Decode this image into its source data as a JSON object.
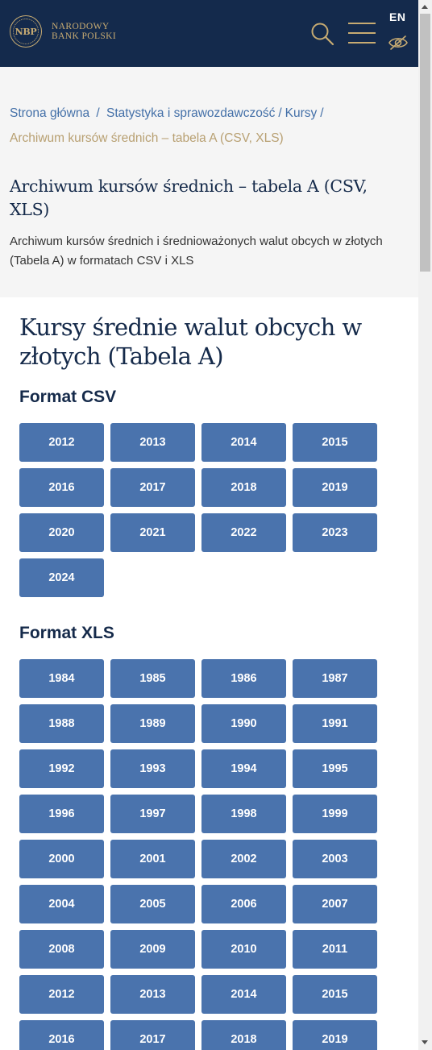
{
  "header": {
    "logo_mark": "NBP",
    "logo_line1": "NARODOWY",
    "logo_line2": "BANK POLSKI",
    "lang": "EN",
    "colors": {
      "background": "#142a4c",
      "accent": "#c7ab72"
    }
  },
  "breadcrumbs": [
    {
      "label": "Strona główna"
    },
    {
      "label": "Statystyka i sprawozdawczość"
    },
    {
      "label": "Kursy"
    },
    {
      "label": "Archiwum kursów średnich – tabela A (CSV, XLS)"
    }
  ],
  "intro": {
    "title": "Archiwum kursów średnich – tabela A (CSV, XLS)",
    "description": "Archiwum kursów średnich i średnioważonych walut obcych w złotych (Tabela A) w formatach CSV i XLS"
  },
  "main": {
    "title": "Kursy średnie walut obcych w złotych (Tabela A)",
    "csv": {
      "heading": "Format CSV",
      "years": [
        "2012",
        "2013",
        "2014",
        "2015",
        "2016",
        "2017",
        "2018",
        "2019",
        "2020",
        "2021",
        "2022",
        "2023",
        "2024"
      ]
    },
    "xls": {
      "heading": "Format XLS",
      "years": [
        "1984",
        "1985",
        "1986",
        "1987",
        "1988",
        "1989",
        "1990",
        "1991",
        "1992",
        "1993",
        "1994",
        "1995",
        "1996",
        "1997",
        "1998",
        "1999",
        "2000",
        "2001",
        "2002",
        "2003",
        "2004",
        "2005",
        "2006",
        "2007",
        "2008",
        "2009",
        "2010",
        "2011",
        "2012",
        "2013",
        "2014",
        "2015",
        "2016",
        "2017",
        "2018",
        "2019"
      ]
    },
    "button_color": "#4a73ad"
  },
  "icons": {
    "search": "search-icon",
    "menu": "hamburger-menu-icon",
    "accessibility": "eye-slash-icon"
  }
}
